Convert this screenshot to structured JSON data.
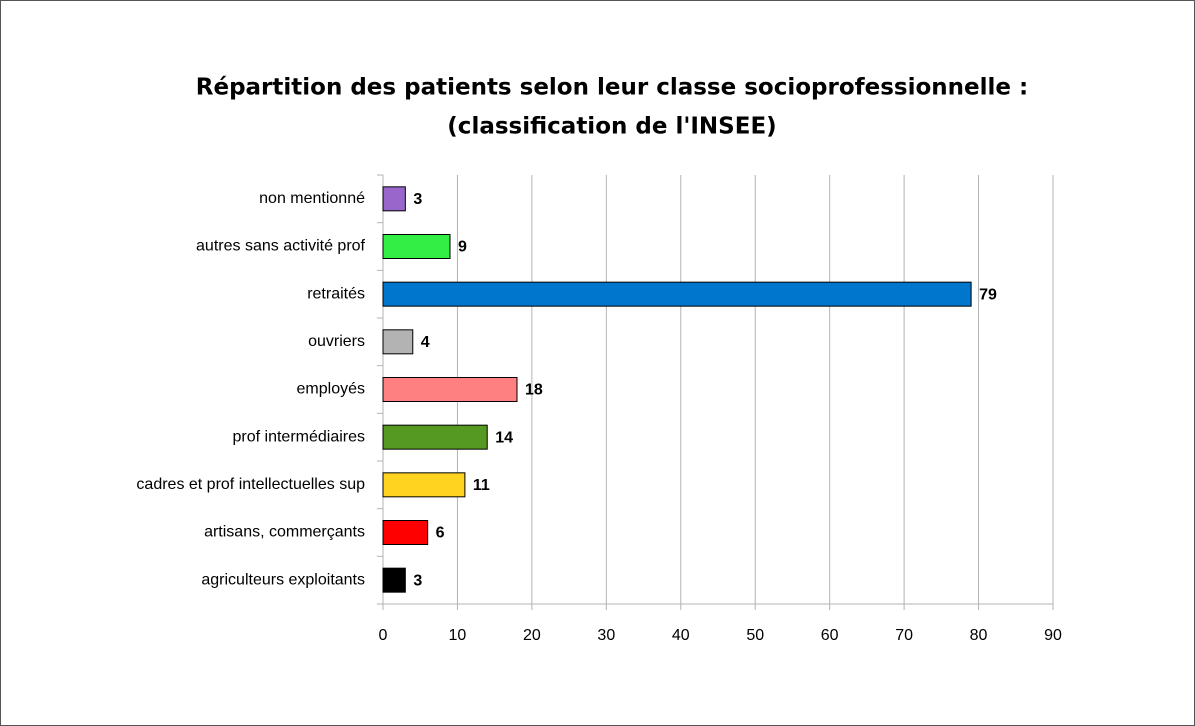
{
  "chart_data": {
    "type": "bar",
    "orientation": "horizontal",
    "title": [
      "Répartition des patients selon leur classe socioprofessionnelle  :",
      "(classification de l'INSEE)"
    ],
    "categories": [
      "non mentionné",
      "autres sans activité prof",
      "retraités",
      "ouvriers",
      "employés",
      "prof intermédiaires",
      "cadres et prof intellectuelles sup",
      "artisans, commerçants",
      "agriculteurs exploitants"
    ],
    "values": [
      3,
      9,
      79,
      4,
      18,
      14,
      11,
      6,
      3
    ],
    "colors": [
      "#9966cc",
      "#33ee44",
      "#0077cc",
      "#b3b3b3",
      "#ff8080",
      "#559922",
      "#ffd320",
      "#ff0000",
      "#000000"
    ],
    "xlim": [
      0,
      90
    ],
    "xticks": [
      0,
      10,
      20,
      30,
      40,
      50,
      60,
      70,
      80,
      90
    ],
    "grid": true
  }
}
